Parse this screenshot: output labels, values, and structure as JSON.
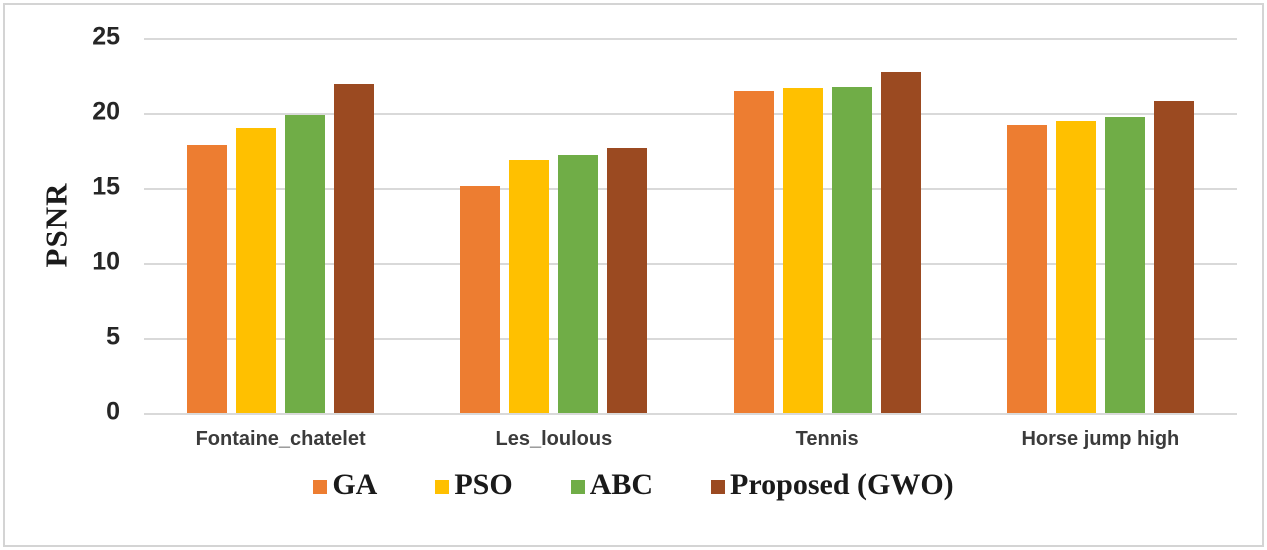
{
  "figure": {
    "background": "#ffffff",
    "frame_color": "#d4d4d4",
    "gridline_color": "#d9d9d9",
    "tick_text_color": "#262626",
    "category_text_color": "#3b3b3b"
  },
  "chart_data": {
    "type": "bar",
    "title": "",
    "xlabel": "",
    "ylabel": "PSNR",
    "ylim": [
      0,
      25
    ],
    "yticks": [
      0,
      5,
      10,
      15,
      20,
      25
    ],
    "grid": true,
    "legend_position": "bottom",
    "categories": [
      "Fontaine_chatelet",
      "Les_loulous",
      "Tennis",
      "Horse jump high"
    ],
    "series": [
      {
        "name": "GA",
        "color": "#ED7D31",
        "values": [
          17.9,
          15.15,
          21.5,
          19.2
        ]
      },
      {
        "name": "PSO",
        "color": "#FFC000",
        "values": [
          19.0,
          16.85,
          21.65,
          19.45
        ]
      },
      {
        "name": "ABC",
        "color": "#70AD47",
        "values": [
          19.85,
          17.2,
          21.75,
          19.75
        ]
      },
      {
        "name": "Proposed (GWO)",
        "color": "#9B4A21",
        "values": [
          21.95,
          17.7,
          22.75,
          20.8
        ]
      }
    ]
  }
}
